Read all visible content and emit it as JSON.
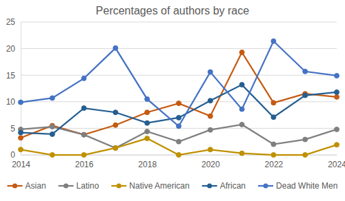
{
  "chart_data": {
    "type": "line",
    "title": "Percentages of authors by race",
    "x": [
      2014,
      2015,
      2016,
      2017,
      2018,
      2019,
      2020,
      2021,
      2022,
      2023,
      2024
    ],
    "xlim": [
      2014,
      2024
    ],
    "xticks": [
      2014,
      2016,
      2018,
      2020,
      2022,
      2024
    ],
    "ylim": [
      0,
      25
    ],
    "yticks": [
      0,
      5,
      10,
      15,
      20,
      25
    ],
    "grid": true,
    "legend": "bottom",
    "marker": "circle",
    "line_style": "solid",
    "series": [
      {
        "name": "Asian",
        "color": "#c55a11",
        "values": [
          3.2,
          5.5,
          3.8,
          5.6,
          8.0,
          9.7,
          7.3,
          19.3,
          9.8,
          11.5,
          10.9
        ]
      },
      {
        "name": "Latino",
        "color": "#7f7f7f",
        "values": [
          4.8,
          5.3,
          3.8,
          1.3,
          4.4,
          2.5,
          4.7,
          5.7,
          2.0,
          2.9,
          4.8
        ]
      },
      {
        "name": "Native American",
        "color": "#bf9000",
        "values": [
          1.0,
          0,
          0,
          1.3,
          3.1,
          0,
          1.0,
          0.3,
          0,
          0,
          1.9
        ]
      },
      {
        "name": "African",
        "color": "#255e91",
        "values": [
          4.2,
          3.9,
          8.8,
          8.0,
          6.0,
          7.0,
          10.2,
          13.2,
          7.1,
          11.2,
          11.8
        ]
      },
      {
        "name": "Dead White Men",
        "color": "#4472c4",
        "values": [
          9.9,
          10.7,
          14.4,
          20.1,
          10.5,
          5.4,
          15.6,
          8.6,
          21.4,
          15.7,
          14.9
        ]
      }
    ]
  }
}
